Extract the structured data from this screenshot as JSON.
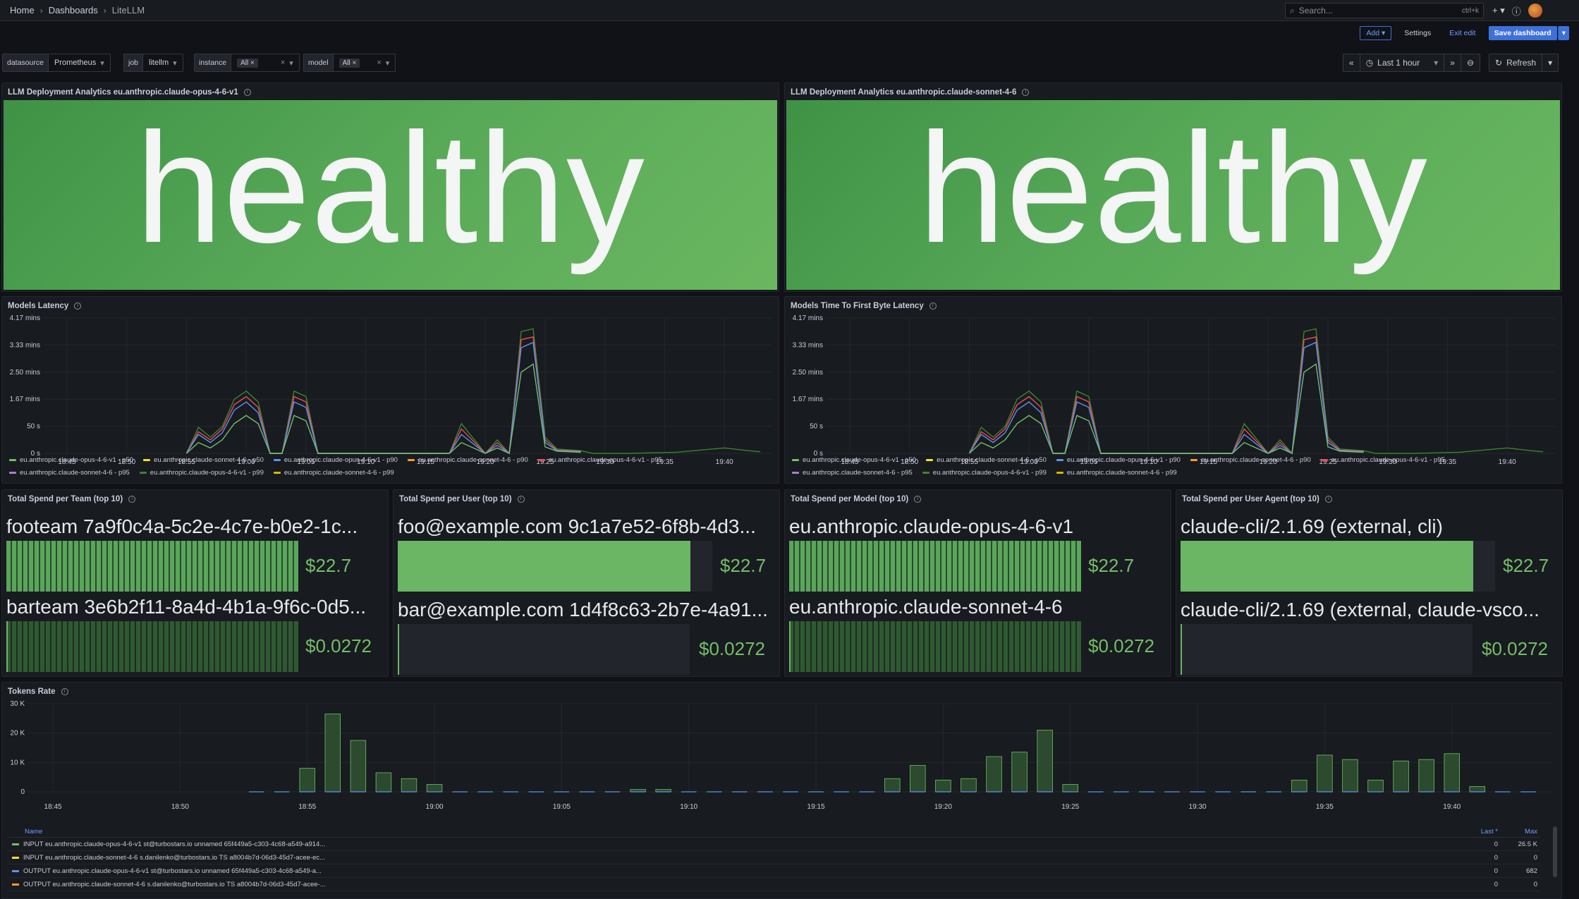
{
  "breadcrumb": [
    "Home",
    "Dashboards",
    "LiteLLM"
  ],
  "search": {
    "placeholder": "Search...",
    "shortcut": "ctrl+k"
  },
  "actions": {
    "add": "Add",
    "settings": "Settings",
    "exit_edit": "Exit edit",
    "save": "Save dashboard"
  },
  "variables": {
    "datasource": {
      "label": "datasource",
      "value": "Prometheus"
    },
    "job": {
      "label": "job",
      "value": "litellm"
    },
    "instance": {
      "label": "instance",
      "value": "All"
    },
    "model": {
      "label": "model",
      "value": "All"
    }
  },
  "time": {
    "range": "Last 1 hour",
    "refresh": "Refresh"
  },
  "panels": {
    "health1": {
      "title": "LLM Deployment Analytics eu.anthropic.claude-opus-4-6-v1",
      "value": "healthy"
    },
    "health2": {
      "title": "LLM Deployment Analytics eu.anthropic.claude-sonnet-4-6",
      "value": "healthy"
    },
    "latency": {
      "title": "Models Latency"
    },
    "ttfb": {
      "title": "Models Time To First Byte Latency"
    },
    "spend_team": {
      "title": "Total Spend per Team (top 10)"
    },
    "spend_user": {
      "title": "Total Spend per User (top 10)"
    },
    "spend_model": {
      "title": "Total Spend per Model (top 10)"
    },
    "spend_agent": {
      "title": "Total Spend per User Agent (top 10)"
    },
    "tokens": {
      "title": "Tokens Rate"
    }
  },
  "latency_legend_a": [
    {
      "name": "eu.anthropic.claude-opus-4-6-v1 - p50",
      "color": "#73bf69"
    },
    {
      "name": "eu.anthropic.claude-sonnet-4-6 - p50",
      "color": "#fade2a"
    },
    {
      "name": "eu.anthropic.claude-opus-4-6-v1 - p90",
      "color": "#5794f2"
    },
    {
      "name": "eu.anthropic.claude-sonnet-4-6 - p90",
      "color": "#ff9830"
    },
    {
      "name": "eu.anthropic.claude-opus-4-6-v1 - p95",
      "color": "#f2495c"
    },
    {
      "name": "eu.anthropic.claude-sonnet-4-6 - p95",
      "color": "#b877d9"
    },
    {
      "name": "eu.anthropic.claude-opus-4-6-v1 - p99",
      "color": "#37872d"
    },
    {
      "name": "eu.anthropic.claude-sonnet-4-6 - p99",
      "color": "#e0b400"
    }
  ],
  "latency_legend_b": [
    {
      "name": "eu.anthropic.claude-opus-4-6-v1 - p50",
      "color": "#73bf69"
    },
    {
      "name": "eu.anthropic.claude-sonnet-4-6 - p50",
      "color": "#fade2a"
    },
    {
      "name": "eu.anthropic.claude-opus-4-6-v1 - p90",
      "color": "#5794f2"
    },
    {
      "name": "eu.anthropic.claude-sonnet-4-6 - p90",
      "color": "#ff9830"
    },
    {
      "name": "eu.anthropic.claude-opus-4-6-v1 - p95",
      "color": "#f2495c"
    },
    {
      "name": "eu.anthropic.claude-sonnet-4-6 - p95",
      "color": "#b877d9"
    },
    {
      "name": "eu.anthropic.claude-opus-4-6-v1 - p99",
      "color": "#37872d"
    },
    {
      "name": "eu.anthropic.claude-sonnet-4-6 - p99",
      "color": "#e0b400"
    }
  ],
  "spend": {
    "team": [
      {
        "name": "footeam 7a9f0c4a-5c2e-4c7e-b0e2-1c...",
        "value": "$22.7",
        "fraction": 1.0
      },
      {
        "name": "barteam 3e6b2f11-8a4d-4b1a-9f6c-0d5...",
        "value": "$0.0272",
        "fraction": 0.0012
      }
    ],
    "user": [
      {
        "name": "foo@example.com 9c1a7e52-6f8b-4d3...",
        "value": "$22.7",
        "fraction": 1.0
      },
      {
        "name": "bar@example.com 1d4f8c63-2b7e-4a91...",
        "value": "$0.0272",
        "fraction": 0.0012
      }
    ],
    "model": [
      {
        "name": "eu.anthropic.claude-opus-4-6-v1",
        "value": "$22.7",
        "fraction": 1.0
      },
      {
        "name": "eu.anthropic.claude-sonnet-4-6",
        "value": "$0.0272",
        "fraction": 0.0012
      }
    ],
    "agent": [
      {
        "name": "claude-cli/2.1.69 (external, cli)",
        "value": "$22.7",
        "fraction": 1.0
      },
      {
        "name": "claude-cli/2.1.69 (external, claude-vsco...",
        "value": "$0.0272",
        "fraction": 0.0012
      }
    ]
  },
  "tokens_table": {
    "headers": {
      "name": "Name",
      "last": "Last *",
      "max": "Max"
    },
    "rows": [
      {
        "name": "INPUT eu.anthropic.claude-opus-4-6-v1 st@turbostars.io unnamed 65f449a5-c303-4c68-a549-a914...",
        "last": "0",
        "max": "26.5 K",
        "color": "#73bf69"
      },
      {
        "name": "INPUT eu.anthropic.claude-sonnet-4-6 s.danilenko@turbostars.io TS a8004b7d-06d3-45d7-acee-ec...",
        "last": "0",
        "max": "0",
        "color": "#fade2a"
      },
      {
        "name": "OUTPUT eu.anthropic.claude-opus-4-6-v1 st@turbostars.io unnamed 65f449a5-c303-4c68-a549-a...",
        "last": "0",
        "max": "682",
        "color": "#5794f2"
      },
      {
        "name": "OUTPUT eu.anthropic.claude-sonnet-4-6 s.danilenko@turbostars.io TS a8004b7d-06d3-45d7-acee-...",
        "last": "0",
        "max": "0",
        "color": "#ff9830"
      }
    ]
  },
  "chart_data": [
    {
      "type": "line",
      "title": "Models Latency",
      "y_tick_labels": [
        "0 s",
        "50 s",
        "1.67 mins",
        "2.50 mins",
        "3.33 mins",
        "4.17 mins"
      ],
      "x_tick_labels": [
        "18:45",
        "18:50",
        "18:55",
        "19:00",
        "19:05",
        "19:10",
        "19:15",
        "19:20",
        "19:25",
        "19:30",
        "19:35",
        "19:40"
      ],
      "x_range_min": [
        43,
        104
      ],
      "ylim": [
        0,
        250
      ],
      "grid": true,
      "legend": "bottom",
      "series": [
        {
          "name": "eu.anthropic.claude-opus-4-6-v1 - p99",
          "x": [
            55,
            56,
            57,
            58,
            59,
            60,
            61,
            62,
            63,
            64,
            65,
            66,
            77,
            78,
            80,
            81,
            82,
            83,
            84,
            85,
            86,
            88,
            89,
            90,
            92,
            96,
            99,
            100,
            102,
            103
          ],
          "y": [
            0,
            48,
            30,
            50,
            100,
            115,
            95,
            0,
            0,
            115,
            105,
            0,
            0,
            55,
            0,
            25,
            0,
            225,
            230,
            30,
            8,
            5,
            0,
            0,
            0,
            2,
            8,
            10,
            5,
            3
          ]
        },
        {
          "name": "eu.anthropic.claude-opus-4-6-v1 - p95",
          "x": [
            55,
            56,
            57,
            58,
            59,
            60,
            61,
            62,
            63,
            64,
            65,
            66,
            77,
            78,
            80,
            81,
            82,
            83,
            84,
            85,
            86,
            88
          ],
          "y": [
            0,
            40,
            25,
            45,
            90,
            105,
            85,
            0,
            0,
            105,
            95,
            0,
            0,
            45,
            0,
            20,
            0,
            210,
            215,
            25,
            6,
            4
          ]
        },
        {
          "name": "eu.anthropic.claude-opus-4-6-v1 - p90",
          "x": [
            55,
            56,
            57,
            58,
            59,
            60,
            61,
            62,
            63,
            64,
            65,
            66,
            77,
            78,
            80,
            81,
            82,
            83,
            84,
            85,
            86,
            88
          ],
          "y": [
            0,
            35,
            20,
            38,
            80,
            95,
            75,
            0,
            0,
            95,
            85,
            0,
            0,
            35,
            0,
            15,
            0,
            195,
            205,
            20,
            5,
            3
          ]
        },
        {
          "name": "eu.anthropic.claude-opus-4-6-v1 - p50",
          "x": [
            55,
            56,
            57,
            58,
            59,
            60,
            61,
            62,
            63,
            64,
            65,
            66,
            77,
            78,
            80,
            81,
            82,
            83,
            84,
            85,
            86,
            88
          ],
          "y": [
            0,
            20,
            10,
            25,
            55,
            70,
            55,
            0,
            0,
            70,
            60,
            0,
            0,
            20,
            0,
            10,
            0,
            150,
            165,
            12,
            4,
            2
          ]
        }
      ]
    },
    {
      "type": "line",
      "title": "Models Time To First Byte Latency",
      "y_tick_labels": [
        "0 s",
        "50 s",
        "1.67 mins",
        "2.50 mins",
        "3.33 mins",
        "4.17 mins"
      ],
      "x_tick_labels": [
        "18:45",
        "18:50",
        "18:55",
        "19:00",
        "19:05",
        "19:10",
        "19:15",
        "19:20",
        "19:25",
        "19:30",
        "19:35",
        "19:40"
      ],
      "x_range_min": [
        43,
        104
      ],
      "ylim": [
        0,
        250
      ],
      "grid": true,
      "legend": "bottom",
      "series": [
        {
          "name": "eu.anthropic.claude-opus-4-6-v1 - p99",
          "x": [
            55,
            56,
            57,
            58,
            59,
            60,
            61,
            62,
            63,
            64,
            65,
            66,
            77,
            78,
            80,
            81,
            82,
            83,
            84,
            85,
            86,
            88,
            89,
            90,
            92,
            96,
            99,
            100,
            102,
            103
          ],
          "y": [
            0,
            48,
            30,
            50,
            100,
            115,
            95,
            0,
            0,
            115,
            105,
            0,
            0,
            55,
            0,
            25,
            0,
            225,
            230,
            30,
            8,
            5,
            0,
            0,
            0,
            2,
            8,
            10,
            5,
            3
          ]
        },
        {
          "name": "eu.anthropic.claude-opus-4-6-v1 - p95",
          "x": [
            55,
            56,
            57,
            58,
            59,
            60,
            61,
            62,
            63,
            64,
            65,
            66,
            77,
            78,
            80,
            81,
            82,
            83,
            84,
            85,
            86,
            88
          ],
          "y": [
            0,
            40,
            25,
            45,
            90,
            105,
            85,
            0,
            0,
            105,
            95,
            0,
            0,
            45,
            0,
            20,
            0,
            210,
            215,
            25,
            6,
            4
          ]
        },
        {
          "name": "eu.anthropic.claude-opus-4-6-v1 - p90",
          "x": [
            55,
            56,
            57,
            58,
            59,
            60,
            61,
            62,
            63,
            64,
            65,
            66,
            77,
            78,
            80,
            81,
            82,
            83,
            84,
            85,
            86,
            88
          ],
          "y": [
            0,
            35,
            20,
            38,
            80,
            95,
            75,
            0,
            0,
            95,
            85,
            0,
            0,
            35,
            0,
            15,
            0,
            195,
            205,
            20,
            5,
            3
          ]
        },
        {
          "name": "eu.anthropic.claude-opus-4-6-v1 - p50",
          "x": [
            55,
            56,
            57,
            58,
            59,
            60,
            61,
            62,
            63,
            64,
            65,
            66,
            77,
            78,
            80,
            81,
            82,
            83,
            84,
            85,
            86,
            88
          ],
          "y": [
            0,
            20,
            10,
            25,
            55,
            70,
            55,
            0,
            0,
            70,
            60,
            0,
            0,
            20,
            0,
            10,
            0,
            150,
            165,
            12,
            4,
            2
          ]
        }
      ]
    },
    {
      "type": "bar",
      "title": "Tokens Rate",
      "y_tick_labels": [
        "0",
        "10 K",
        "20 K",
        "30 K"
      ],
      "x_tick_labels": [
        "18:45",
        "18:50",
        "18:55",
        "19:00",
        "19:05",
        "19:10",
        "19:15",
        "19:20",
        "19:25",
        "19:30",
        "19:35",
        "19:40"
      ],
      "x_range_min": [
        44,
        104
      ],
      "ylim": [
        0,
        30000
      ],
      "grid": true,
      "legend": "bottom",
      "series": [
        {
          "name": "INPUT eu.anthropic.claude-opus-4-6-v1 st@turbostars.io unnamed 65f449a5-c303-4c68-a549-a914...",
          "x": [
            53,
            54,
            55,
            56,
            57,
            58,
            59,
            60,
            61,
            62,
            63,
            64,
            65,
            66,
            67,
            68,
            69,
            70,
            71,
            72,
            73,
            74,
            75,
            76,
            77,
            78,
            79,
            80,
            81,
            82,
            83,
            84,
            85,
            86,
            87,
            88,
            89,
            90,
            91,
            92,
            93,
            94,
            95,
            96,
            97,
            98,
            99,
            100,
            101,
            102,
            103
          ],
          "values": [
            0,
            0,
            8000,
            26500,
            17500,
            6500,
            4500,
            2500,
            0,
            0,
            0,
            0,
            0,
            0,
            0,
            800,
            800,
            0,
            0,
            0,
            0,
            0,
            0,
            0,
            0,
            4500,
            9000,
            4000,
            4500,
            12000,
            13500,
            21000,
            2500,
            0,
            0,
            0,
            0,
            0,
            0,
            0,
            0,
            4000,
            12500,
            11000,
            4000,
            10500,
            11000,
            13000,
            1800,
            0,
            0
          ]
        }
      ]
    }
  ]
}
